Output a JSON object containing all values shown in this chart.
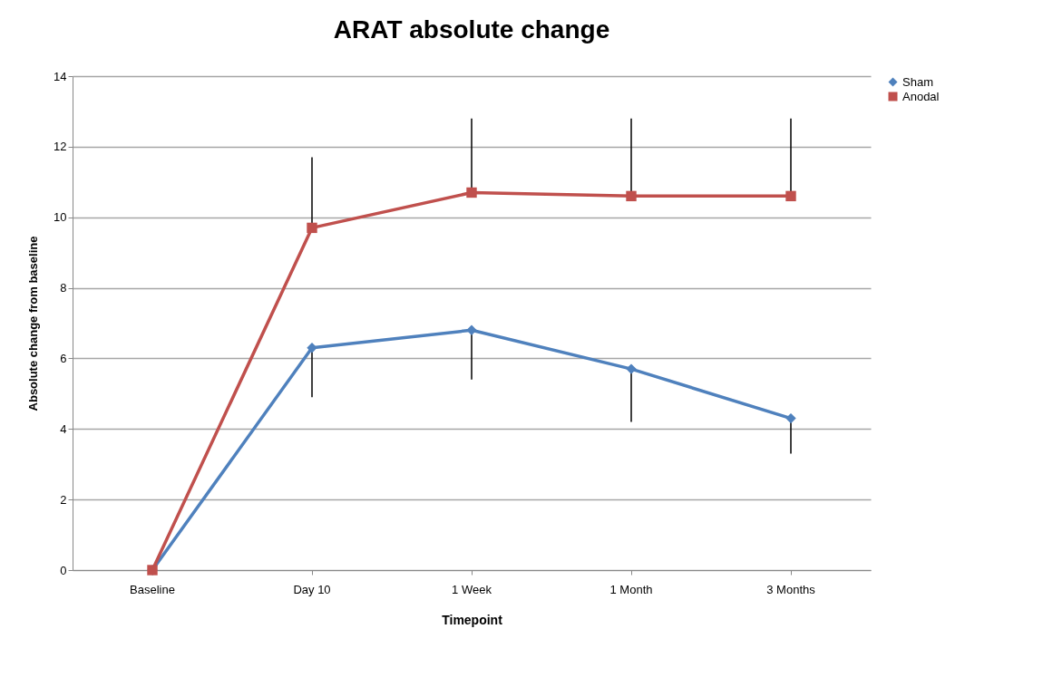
{
  "chart_data": {
    "type": "line",
    "title": "ARAT absolute change",
    "xlabel": "Timepoint",
    "ylabel": "Absolute change from baseline",
    "categories": [
      "Baseline",
      "Day 10",
      "1 Week",
      "1 Month",
      "3 Months"
    ],
    "series": [
      {
        "name": "Sham",
        "color": "#4f81bd",
        "marker": "diamond",
        "values": [
          0,
          6.3,
          6.8,
          5.7,
          4.3
        ],
        "errors": [
          null,
          [
            4.9,
            6.3
          ],
          [
            5.4,
            6.8
          ],
          [
            4.2,
            5.7
          ],
          [
            3.3,
            4.3
          ]
        ]
      },
      {
        "name": "Anodal",
        "color": "#c0504d",
        "marker": "square",
        "values": [
          0,
          9.7,
          10.7,
          10.6,
          10.6
        ],
        "errors": [
          null,
          [
            9.7,
            11.7
          ],
          [
            10.7,
            12.8
          ],
          [
            10.6,
            12.8
          ],
          [
            10.6,
            12.8
          ]
        ]
      }
    ],
    "ylim": [
      0,
      14
    ],
    "yticks": [
      0,
      2,
      4,
      6,
      8,
      10,
      12,
      14
    ],
    "grid": "y",
    "legend": "right"
  }
}
